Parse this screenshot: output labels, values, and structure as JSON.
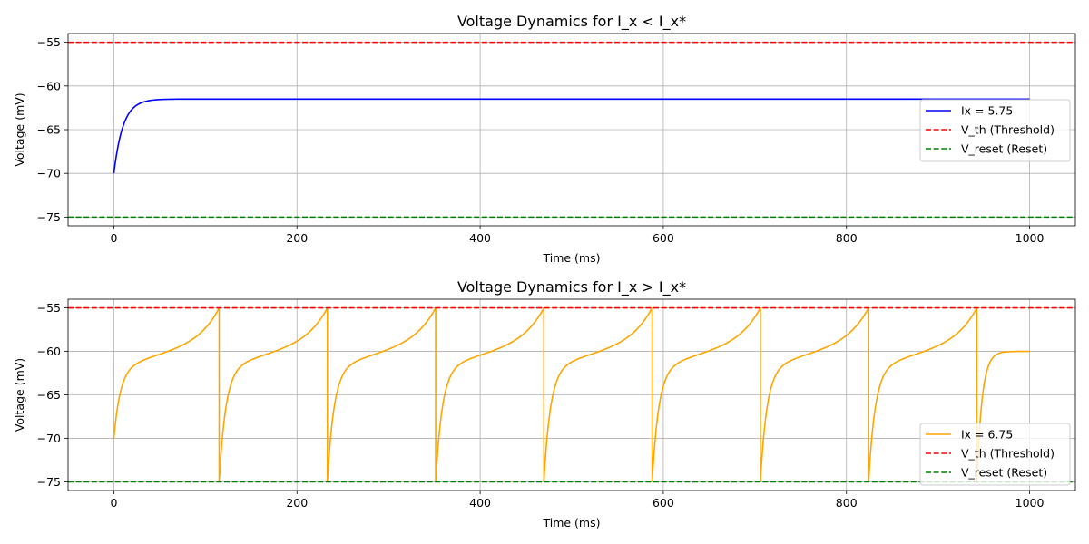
{
  "chart_data": [
    {
      "type": "line",
      "title": "Voltage Dynamics for I_x < I_x*",
      "xlabel": "Time (ms)",
      "ylabel": "Voltage (mV)",
      "xlim": [
        -50,
        1050
      ],
      "ylim": [
        -76,
        -54
      ],
      "xticks": [
        0,
        200,
        400,
        600,
        800,
        1000
      ],
      "yticks": [
        -75,
        -70,
        -65,
        -60,
        -55
      ],
      "grid": true,
      "legend_position": "center-right",
      "series": [
        {
          "name": "Ix = 5.75",
          "style": "solid",
          "color": "#0000ff",
          "model": {
            "v_rest": -70,
            "v_inf": -61.5,
            "tau_ms": 10,
            "t_end": 1000
          }
        },
        {
          "name": "V_th (Threshold)",
          "style": "dashed",
          "color": "#ff0000",
          "hline": -55
        },
        {
          "name": "V_reset (Reset)",
          "style": "dashed",
          "color": "#008000",
          "hline": -75
        }
      ]
    },
    {
      "type": "line",
      "title": "Voltage Dynamics for I_x > I_x*",
      "xlabel": "Time (ms)",
      "ylabel": "Voltage (mV)",
      "xlim": [
        -50,
        1050
      ],
      "ylim": [
        -76,
        -54
      ],
      "xticks": [
        0,
        200,
        400,
        600,
        800,
        1000
      ],
      "yticks": [
        -75,
        -70,
        -65,
        -60,
        -55
      ],
      "grid": true,
      "legend_position": "lower-right",
      "series": [
        {
          "name": "Ix = 6.75",
          "style": "solid",
          "color": "#ffa500",
          "spikes": {
            "v_start": -70,
            "v_reset": -75,
            "v_th": -55,
            "t_first": 115,
            "period": 118.2,
            "count": 8,
            "t_end": 1000,
            "v_end": -60
          }
        },
        {
          "name": "V_th (Threshold)",
          "style": "dashed",
          "color": "#ff0000",
          "hline": -55
        },
        {
          "name": "V_reset (Reset)",
          "style": "dashed",
          "color": "#008000",
          "hline": -75
        }
      ]
    }
  ]
}
